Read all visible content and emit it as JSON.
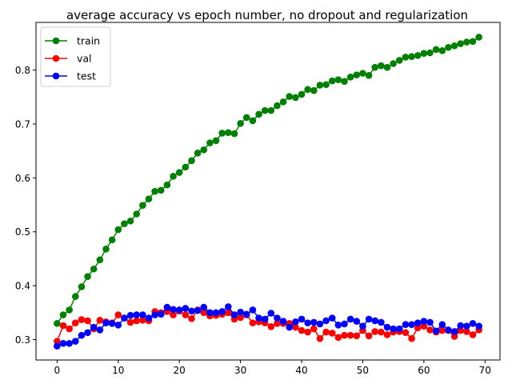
{
  "chart_data": {
    "type": "line",
    "title": "average accuracy vs epoch number, no dropout and regularization",
    "xlabel": "",
    "ylabel": "",
    "xlim": [
      -3.45,
      72.45
    ],
    "ylim": [
      0.2622,
      0.8884
    ],
    "xticks": [
      0,
      10,
      20,
      30,
      40,
      50,
      60,
      70
    ],
    "yticks": [
      0.3,
      0.4,
      0.5,
      0.6,
      0.7,
      0.8
    ],
    "xtick_labels": [
      "0",
      "10",
      "20",
      "30",
      "40",
      "50",
      "60",
      "70"
    ],
    "ytick_labels": [
      "0.3",
      "0.4",
      "0.5",
      "0.6",
      "0.7",
      "0.8"
    ],
    "grid": false,
    "legend": "top-left",
    "x": [
      0,
      1,
      2,
      3,
      4,
      5,
      6,
      7,
      8,
      9,
      10,
      11,
      12,
      13,
      14,
      15,
      16,
      17,
      18,
      19,
      20,
      21,
      22,
      23,
      24,
      25,
      26,
      27,
      28,
      29,
      30,
      31,
      32,
      33,
      34,
      35,
      36,
      37,
      38,
      39,
      40,
      41,
      42,
      43,
      44,
      45,
      46,
      47,
      48,
      49,
      50,
      51,
      52,
      53,
      54,
      55,
      56,
      57,
      58,
      59,
      60,
      61,
      62,
      63,
      64,
      65,
      66,
      67,
      68,
      69
    ],
    "series": [
      {
        "name": "train",
        "color": "#008000",
        "values": [
          0.33,
          0.346,
          0.355,
          0.38,
          0.398,
          0.417,
          0.431,
          0.448,
          0.468,
          0.485,
          0.504,
          0.515,
          0.52,
          0.533,
          0.549,
          0.561,
          0.575,
          0.577,
          0.587,
          0.603,
          0.61,
          0.62,
          0.632,
          0.646,
          0.652,
          0.665,
          0.669,
          0.683,
          0.684,
          0.682,
          0.701,
          0.712,
          0.706,
          0.718,
          0.725,
          0.725,
          0.734,
          0.741,
          0.751,
          0.749,
          0.755,
          0.764,
          0.762,
          0.772,
          0.773,
          0.78,
          0.782,
          0.779,
          0.787,
          0.791,
          0.794,
          0.79,
          0.805,
          0.808,
          0.805,
          0.812,
          0.818,
          0.824,
          0.825,
          0.827,
          0.831,
          0.832,
          0.838,
          0.836,
          0.842,
          0.845,
          0.849,
          0.852,
          0.853,
          0.861
        ]
      },
      {
        "name": "val",
        "color": "#ff0000",
        "values": [
          0.297,
          0.326,
          0.32,
          0.331,
          0.337,
          0.335,
          0.32,
          0.336,
          0.333,
          0.331,
          0.346,
          0.34,
          0.332,
          0.335,
          0.336,
          0.335,
          0.352,
          0.35,
          0.352,
          0.346,
          0.353,
          0.346,
          0.339,
          0.355,
          0.35,
          0.344,
          0.345,
          0.347,
          0.35,
          0.338,
          0.341,
          0.346,
          0.331,
          0.333,
          0.331,
          0.324,
          0.33,
          0.33,
          0.33,
          0.323,
          0.317,
          0.314,
          0.32,
          0.302,
          0.314,
          0.312,
          0.304,
          0.308,
          0.308,
          0.307,
          0.317,
          0.307,
          0.315,
          0.314,
          0.309,
          0.314,
          0.315,
          0.313,
          0.302,
          0.322,
          0.325,
          0.318,
          0.314,
          0.317,
          0.317,
          0.306,
          0.317,
          0.315,
          0.309,
          0.318
        ]
      },
      {
        "name": "test",
        "color": "#0000ff",
        "values": [
          0.288,
          0.293,
          0.293,
          0.297,
          0.308,
          0.313,
          0.323,
          0.318,
          0.331,
          0.33,
          0.327,
          0.34,
          0.345,
          0.346,
          0.346,
          0.34,
          0.346,
          0.347,
          0.36,
          0.356,
          0.355,
          0.358,
          0.353,
          0.354,
          0.36,
          0.35,
          0.35,
          0.352,
          0.361,
          0.346,
          0.351,
          0.347,
          0.355,
          0.34,
          0.338,
          0.349,
          0.34,
          0.334,
          0.323,
          0.333,
          0.338,
          0.331,
          0.332,
          0.329,
          0.335,
          0.34,
          0.327,
          0.329,
          0.338,
          0.334,
          0.325,
          0.338,
          0.335,
          0.332,
          0.323,
          0.32,
          0.32,
          0.328,
          0.328,
          0.331,
          0.334,
          0.332,
          0.316,
          0.328,
          0.318,
          0.315,
          0.326,
          0.325,
          0.33,
          0.325
        ]
      }
    ]
  }
}
